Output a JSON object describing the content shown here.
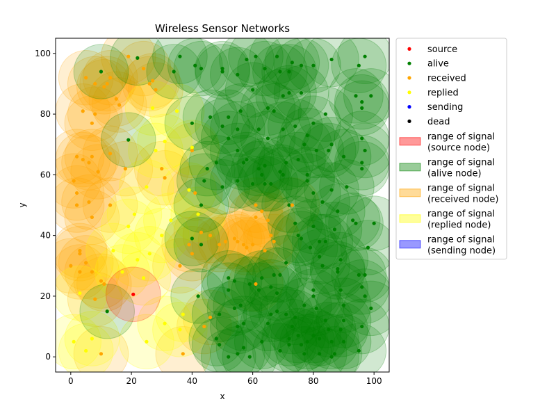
{
  "chart_data": {
    "type": "scatter",
    "title": "Wireless Sensor Networks",
    "xlabel": "x",
    "ylabel": "y",
    "xlim": [
      -5,
      105
    ],
    "ylim": [
      -5,
      105
    ],
    "xticks": [
      0,
      20,
      40,
      60,
      80,
      100
    ],
    "yticks": [
      0,
      20,
      40,
      60,
      80,
      100
    ],
    "grid": false,
    "legend_position": "outside-right",
    "legend": [
      {
        "label": "source",
        "kind": "dot",
        "color": "#ff0000"
      },
      {
        "label": "alive",
        "kind": "dot",
        "color": "#008000"
      },
      {
        "label": "received",
        "kind": "dot",
        "color": "#ffa500"
      },
      {
        "label": "replied",
        "kind": "dot",
        "color": "#ffff00"
      },
      {
        "label": "sending",
        "kind": "dot",
        "color": "#0000ff"
      },
      {
        "label": "dead",
        "kind": "dot",
        "color": "#000000"
      },
      {
        "label": "range of signal\n(source node)",
        "kind": "patch",
        "color": "#ff0000"
      },
      {
        "label": "range of signal\n(alive node)",
        "kind": "patch",
        "color": "#008000"
      },
      {
        "label": "range of signal\n(received node)",
        "kind": "patch",
        "color": "#ffa500"
      },
      {
        "label": "range of signal\n(replied node)",
        "kind": "patch",
        "color": "#ffff00"
      },
      {
        "label": "range of signal\n(sending node)",
        "kind": "patch",
        "color": "#0000ff"
      }
    ],
    "signal_range": 9,
    "series": [
      {
        "name": "source",
        "color": "#ff0000",
        "points": [
          [
            20.6,
            20.6
          ]
        ]
      },
      {
        "name": "alive",
        "color": "#008000",
        "points": [
          [
            10,
            94
          ],
          [
            22,
            98.5
          ],
          [
            36,
            99
          ],
          [
            34,
            94
          ],
          [
            41,
            96
          ],
          [
            43,
            95
          ],
          [
            50,
            95
          ],
          [
            55,
            93
          ],
          [
            61,
            99
          ],
          [
            64,
            95
          ],
          [
            68,
            99
          ],
          [
            69,
            94
          ],
          [
            72,
            94
          ],
          [
            76,
            96
          ],
          [
            80,
            96
          ],
          [
            86,
            98
          ],
          [
            97,
            99
          ],
          [
            95,
            96
          ],
          [
            94,
            86
          ],
          [
            99,
            86
          ],
          [
            96,
            84
          ],
          [
            96,
            82
          ],
          [
            84,
            80
          ],
          [
            80,
            77
          ],
          [
            72,
            87
          ],
          [
            76,
            87
          ],
          [
            70,
            86
          ],
          [
            73,
            97
          ],
          [
            50,
            94
          ],
          [
            58,
            98
          ],
          [
            60,
            88
          ],
          [
            65,
            82
          ],
          [
            67,
            81
          ],
          [
            62,
            75
          ],
          [
            65,
            72
          ],
          [
            70,
            75
          ],
          [
            74,
            76
          ],
          [
            46,
            79
          ],
          [
            52,
            79
          ],
          [
            56,
            81
          ],
          [
            55,
            75
          ],
          [
            50,
            76
          ],
          [
            52,
            72
          ],
          [
            55,
            68
          ],
          [
            57,
            64
          ],
          [
            48,
            64
          ],
          [
            44,
            58
          ],
          [
            45,
            62
          ],
          [
            50,
            56
          ],
          [
            55,
            58
          ],
          [
            58,
            65
          ],
          [
            62,
            62
          ],
          [
            64,
            63
          ],
          [
            63,
            60
          ],
          [
            60,
            57
          ],
          [
            64,
            57
          ],
          [
            69,
            61
          ],
          [
            71,
            64
          ],
          [
            75,
            65
          ],
          [
            78,
            60
          ],
          [
            80,
            54
          ],
          [
            83,
            51
          ],
          [
            86,
            55
          ],
          [
            88,
            48
          ],
          [
            91,
            56
          ],
          [
            96,
            62
          ],
          [
            96,
            64
          ],
          [
            97,
            68
          ],
          [
            96,
            72
          ],
          [
            90,
            66
          ],
          [
            85,
            68
          ],
          [
            86,
            70
          ],
          [
            78,
            73
          ],
          [
            77,
            70
          ],
          [
            81,
            68
          ],
          [
            78,
            58
          ],
          [
            72,
            50
          ],
          [
            74,
            44
          ],
          [
            75,
            40
          ],
          [
            76,
            39
          ],
          [
            79,
            36
          ],
          [
            82,
            38
          ],
          [
            84,
            38
          ],
          [
            82,
            33
          ],
          [
            83,
            30
          ],
          [
            87,
            42
          ],
          [
            88,
            29
          ],
          [
            89,
            32
          ],
          [
            93,
            45
          ],
          [
            94,
            44
          ],
          [
            100,
            44
          ],
          [
            98,
            36
          ],
          [
            97,
            27
          ],
          [
            96,
            23
          ],
          [
            97,
            20
          ],
          [
            99,
            16
          ],
          [
            96,
            10
          ],
          [
            95,
            2
          ],
          [
            95,
            27
          ],
          [
            89,
            22
          ],
          [
            90,
            17
          ],
          [
            90,
            12
          ],
          [
            89,
            9
          ],
          [
            86,
            5
          ],
          [
            87,
            1
          ],
          [
            82,
            1
          ],
          [
            80,
            7
          ],
          [
            78,
            5
          ],
          [
            76,
            4
          ],
          [
            75,
            7
          ],
          [
            72,
            4
          ],
          [
            73,
            10
          ],
          [
            74,
            13
          ],
          [
            77,
            17
          ],
          [
            80,
            20
          ],
          [
            80,
            22
          ],
          [
            81,
            16
          ],
          [
            84,
            12
          ],
          [
            85,
            9
          ],
          [
            71,
            14
          ],
          [
            68,
            21
          ],
          [
            66,
            23
          ],
          [
            67,
            27
          ],
          [
            62,
            22
          ],
          [
            63,
            26
          ],
          [
            59,
            24
          ],
          [
            57,
            11
          ],
          [
            55,
            10
          ],
          [
            54,
            16
          ],
          [
            56,
            17
          ],
          [
            52,
            22
          ],
          [
            52,
            26
          ],
          [
            54,
            25
          ],
          [
            49,
            14
          ],
          [
            48,
            6
          ],
          [
            49,
            4
          ],
          [
            52,
            0
          ],
          [
            55,
            1
          ],
          [
            57,
            3
          ],
          [
            59,
            0
          ],
          [
            63,
            5
          ],
          [
            65,
            11
          ],
          [
            66,
            14
          ],
          [
            68,
            15
          ],
          [
            69,
            2
          ],
          [
            72,
            6
          ],
          [
            77,
            1
          ],
          [
            82,
            6
          ],
          [
            86,
            0
          ],
          [
            90,
            5
          ],
          [
            43,
            50
          ],
          [
            40,
            39
          ],
          [
            43,
            37
          ],
          [
            42,
            20
          ],
          [
            40,
            77
          ],
          [
            12,
            15
          ],
          [
            19,
            71.5
          ],
          [
            66,
            57
          ],
          [
            71,
            31
          ],
          [
            69,
            27
          ],
          [
            70,
            60
          ],
          [
            80,
            43
          ],
          [
            88,
            28
          ]
        ]
      },
      {
        "name": "received",
        "color": "#ffa500",
        "points": [
          [
            19,
            99
          ],
          [
            24,
            95
          ],
          [
            26,
            90
          ],
          [
            27,
            91
          ],
          [
            28,
            88
          ],
          [
            5,
            92
          ],
          [
            8,
            90
          ],
          [
            11,
            89
          ],
          [
            12,
            90
          ],
          [
            13,
            92
          ],
          [
            15,
            85
          ],
          [
            16,
            83
          ],
          [
            7,
            77
          ],
          [
            4,
            81
          ],
          [
            8,
            80
          ],
          [
            2,
            66
          ],
          [
            4,
            65
          ],
          [
            6,
            64
          ],
          [
            9,
            61
          ],
          [
            7,
            66
          ],
          [
            13,
            67
          ],
          [
            18,
            62
          ],
          [
            1,
            58
          ],
          [
            2,
            54
          ],
          [
            2,
            50
          ],
          [
            6,
            51
          ],
          [
            7,
            46
          ],
          [
            13,
            50
          ],
          [
            3,
            35
          ],
          [
            3,
            34
          ],
          [
            5,
            31
          ],
          [
            0,
            30
          ],
          [
            3,
            28
          ],
          [
            7,
            28
          ],
          [
            10,
            25
          ],
          [
            11,
            24
          ],
          [
            8,
            19
          ],
          [
            10,
            1
          ],
          [
            30,
            62
          ],
          [
            31,
            59
          ],
          [
            41,
            54
          ],
          [
            43,
            41
          ],
          [
            46,
            40
          ],
          [
            49,
            37
          ],
          [
            51,
            38
          ],
          [
            54,
            39
          ],
          [
            55,
            38
          ],
          [
            57,
            37
          ],
          [
            58,
            36
          ],
          [
            60,
            37
          ],
          [
            61,
            50
          ],
          [
            63,
            48
          ],
          [
            65,
            45
          ],
          [
            66,
            40
          ],
          [
            67,
            38
          ],
          [
            61,
            46
          ],
          [
            61,
            24
          ],
          [
            64,
            35
          ],
          [
            36,
            30
          ],
          [
            40,
            34
          ],
          [
            39,
            37
          ],
          [
            44,
            10
          ],
          [
            46,
            13
          ],
          [
            37,
            1
          ],
          [
            73,
            50
          ],
          [
            40,
            68
          ]
        ]
      },
      {
        "name": "replied",
        "color": "#ffff00",
        "points": [
          [
            27,
            82
          ],
          [
            35,
            81
          ],
          [
            31,
            71
          ],
          [
            28,
            68
          ],
          [
            25,
            56
          ],
          [
            21,
            47
          ],
          [
            19,
            43
          ],
          [
            26,
            34
          ],
          [
            30,
            40
          ],
          [
            33,
            45
          ],
          [
            14,
            35
          ],
          [
            22,
            32
          ],
          [
            17,
            28
          ],
          [
            24,
            26
          ],
          [
            5,
            2
          ],
          [
            7,
            6
          ],
          [
            1,
            5
          ],
          [
            3,
            21
          ],
          [
            25,
            5
          ],
          [
            31,
            11
          ],
          [
            36,
            9
          ],
          [
            37,
            14
          ],
          [
            40,
            69
          ],
          [
            42,
            47
          ],
          [
            39,
            55
          ]
        ]
      },
      {
        "name": "sending",
        "color": "#0000ff",
        "points": []
      },
      {
        "name": "dead",
        "color": "#000000",
        "points": []
      }
    ]
  }
}
